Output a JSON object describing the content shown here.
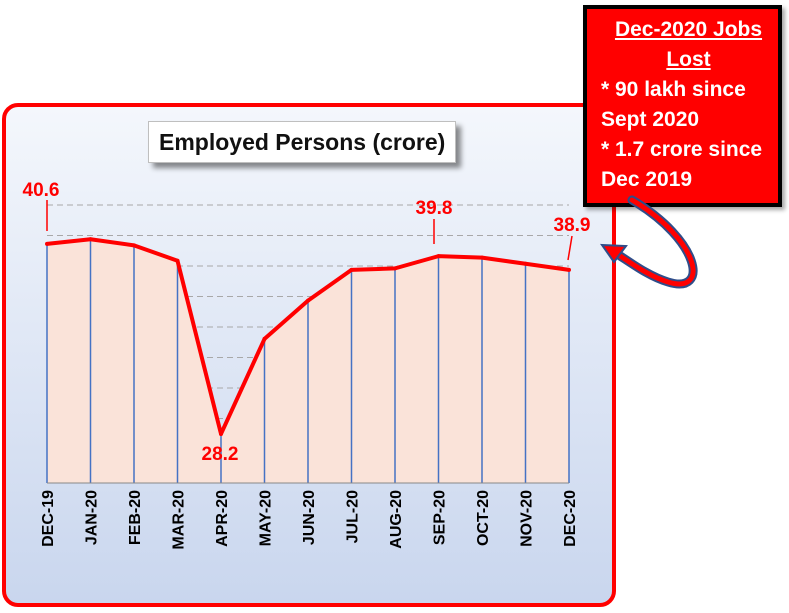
{
  "chart_data": {
    "type": "area",
    "title": "Employed Persons (crore)",
    "categories": [
      "DEC-19",
      "JAN-20",
      "FEB-20",
      "MAR-20",
      "APR-20",
      "MAY-20",
      "JUN-20",
      "JUL-20",
      "AUG-20",
      "SEP-20",
      "OCT-20",
      "NOV-20",
      "DEC-20"
    ],
    "values": [
      40.6,
      40.9,
      40.5,
      39.5,
      28.2,
      34.4,
      36.9,
      38.9,
      39.0,
      39.8,
      39.7,
      39.3,
      38.9
    ],
    "data_labels": [
      {
        "index": 0,
        "text": "40.6"
      },
      {
        "index": 4,
        "text": "28.2"
      },
      {
        "index": 9,
        "text": "39.8"
      },
      {
        "index": 12,
        "text": "38.9"
      }
    ],
    "ylim": [
      25,
      42
    ],
    "grid": true,
    "line_color": "#ff0000",
    "fill_color": "#fae3d9",
    "drop_line_color": "#4472c4"
  },
  "callout": {
    "title": "Dec-2020 Jobs Lost",
    "lines": [
      "* 90 lakh since",
      "Sept 2020",
      "* 1.7 crore since",
      "Dec 2019"
    ],
    "background": "#ff0000"
  }
}
